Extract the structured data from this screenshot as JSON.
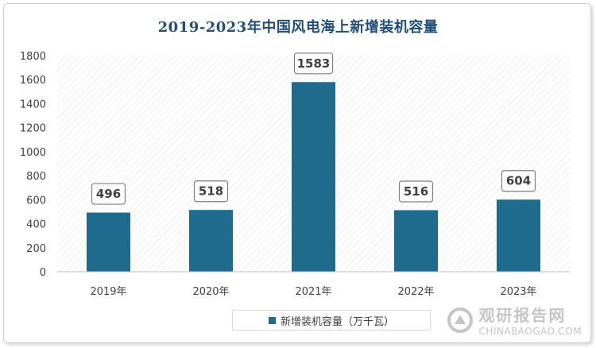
{
  "chart_data": {
    "type": "bar",
    "title": "2019-2023年中国风电海上新增装机容量",
    "categories": [
      "2019年",
      "2020年",
      "2021年",
      "2022年",
      "2023年"
    ],
    "series": [
      {
        "name": "新增装机容量（万千瓦）",
        "values": [
          496,
          518,
          1583,
          516,
          604
        ]
      }
    ],
    "data_labels": [
      "496",
      "518",
      "1583",
      "516",
      "604"
    ],
    "ylim": [
      0,
      1800
    ],
    "yticks": [
      "0",
      "200",
      "400",
      "600",
      "800",
      "1000",
      "1200",
      "1400",
      "1600",
      "1800"
    ],
    "grid": false,
    "legend_position": "bottom",
    "colors": {
      "bar": "#1f6b8e",
      "label_border": "#7f7f7f",
      "title": "#1f4e79"
    }
  },
  "legend": {
    "label": "新增装机容量（万千瓦）"
  },
  "watermark": {
    "cn": "观研报告网",
    "en": "CHINABAOGAO.COM",
    "icon": "watermark-logo-icon"
  }
}
